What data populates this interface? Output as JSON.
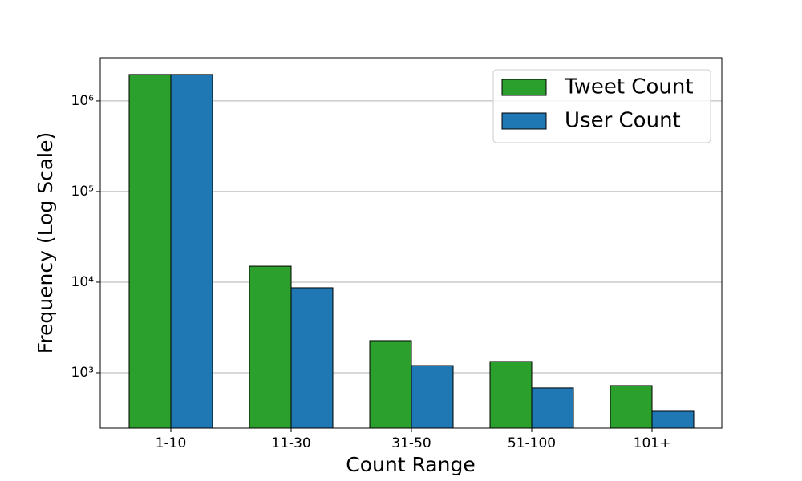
{
  "chart_data": {
    "type": "bar",
    "log_scale": true,
    "grid": true,
    "legend_position": "upper right",
    "x_label": "Count Range",
    "y_label": "Frequency (Log Scale)",
    "categories": [
      "1-10",
      "11-30",
      "31-50",
      "51-100",
      "101+"
    ],
    "series": [
      {
        "name": "Tweet Count",
        "color": "#2ca02c",
        "values": [
          1960000,
          15000,
          2260,
          1330,
          722
        ]
      },
      {
        "name": "User Count",
        "color": "#1f77b4",
        "values": [
          1960000,
          8670,
          1200,
          680,
          376
        ]
      }
    ],
    "ylim": [
      245,
      3000000
    ],
    "yticks": [
      {
        "value": 1000,
        "label": "10³"
      },
      {
        "value": 10000,
        "label": "10⁴"
      },
      {
        "value": 100000,
        "label": "10⁵"
      },
      {
        "value": 1000000,
        "label": "10⁶"
      }
    ]
  }
}
